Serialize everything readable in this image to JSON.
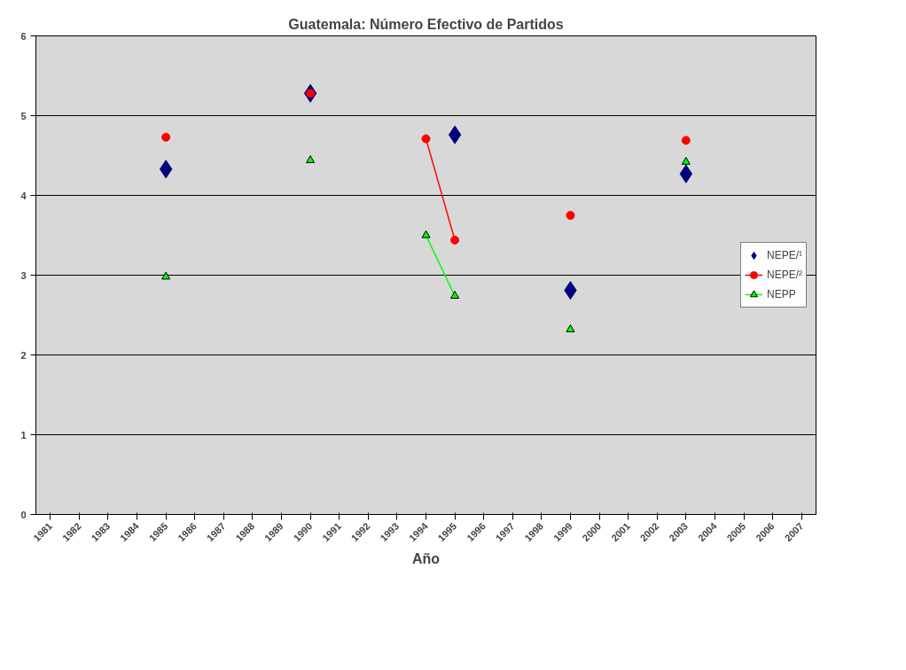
{
  "chart_data": {
    "type": "line",
    "title": "Guatemala: Número Efectivo de Partidos",
    "xlabel": "Año",
    "categories": [
      "1981",
      "1982",
      "1983",
      "1984",
      "1985",
      "1986",
      "1987",
      "1988",
      "1989",
      "1990",
      "1991",
      "1992",
      "1993",
      "1994",
      "1995",
      "1996",
      "1997",
      "1998",
      "1999",
      "2000",
      "2001",
      "2002",
      "2003",
      "2004",
      "2005",
      "2006",
      "2007"
    ],
    "series": [
      {
        "name": "NEPE/¹",
        "color": "#000080",
        "type": "scatter",
        "marker": "diamond",
        "values": [
          null,
          null,
          null,
          null,
          4.33,
          null,
          null,
          null,
          null,
          5.28,
          null,
          null,
          null,
          null,
          4.76,
          null,
          null,
          null,
          2.81,
          null,
          null,
          null,
          4.27,
          null,
          null,
          null,
          null
        ]
      },
      {
        "name": "NEPE/²",
        "color": "#ff0000",
        "marker": "circle",
        "values": [
          null,
          null,
          null,
          null,
          4.73,
          null,
          null,
          null,
          null,
          5.28,
          null,
          null,
          null,
          4.71,
          3.44,
          null,
          null,
          null,
          3.75,
          null,
          null,
          null,
          4.69,
          null,
          null,
          null,
          null
        ]
      },
      {
        "name": "NEPP",
        "color": "#00ff00",
        "marker": "triangle",
        "values": [
          null,
          null,
          null,
          null,
          2.98,
          null,
          null,
          null,
          null,
          4.44,
          null,
          null,
          null,
          3.5,
          2.74,
          null,
          null,
          null,
          2.32,
          null,
          null,
          null,
          4.42,
          null,
          null,
          null,
          null
        ]
      }
    ],
    "ylim": [
      0,
      6
    ],
    "yticks": [
      0,
      1,
      2,
      3,
      4,
      5,
      6
    ],
    "grid": "y",
    "legend": "right"
  }
}
